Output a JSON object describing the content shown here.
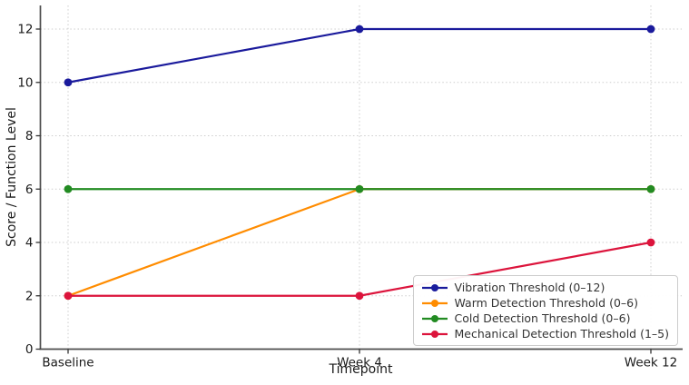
{
  "figure": {
    "background": "#ffffff"
  },
  "chart_data": {
    "type": "line",
    "categories": [
      "Baseline",
      "Week 4",
      "Week 12"
    ],
    "series": [
      {
        "name": "Vibration Threshold (0–12)",
        "values": [
          10,
          12,
          12
        ],
        "color": "#1a1a9c"
      },
      {
        "name": "Warm Detection Threshold (0–6)",
        "values": [
          2,
          6,
          6
        ],
        "color": "#ff8c00"
      },
      {
        "name": "Cold Detection Threshold (0–6)",
        "values": [
          6,
          6,
          6
        ],
        "color": "#228b22"
      },
      {
        "name": "Mechanical Detection Threshold (1–5)",
        "values": [
          2,
          2,
          4
        ],
        "color": "#dc143c"
      }
    ],
    "xlabel": "Timepoint",
    "ylabel": "Score / Function Level",
    "ylim": [
      0,
      12
    ],
    "yticks": [
      0,
      2,
      4,
      6,
      8,
      10,
      12
    ],
    "marker": "circle",
    "grid": "dotted-both-axes",
    "legend_position": "lower-right"
  }
}
